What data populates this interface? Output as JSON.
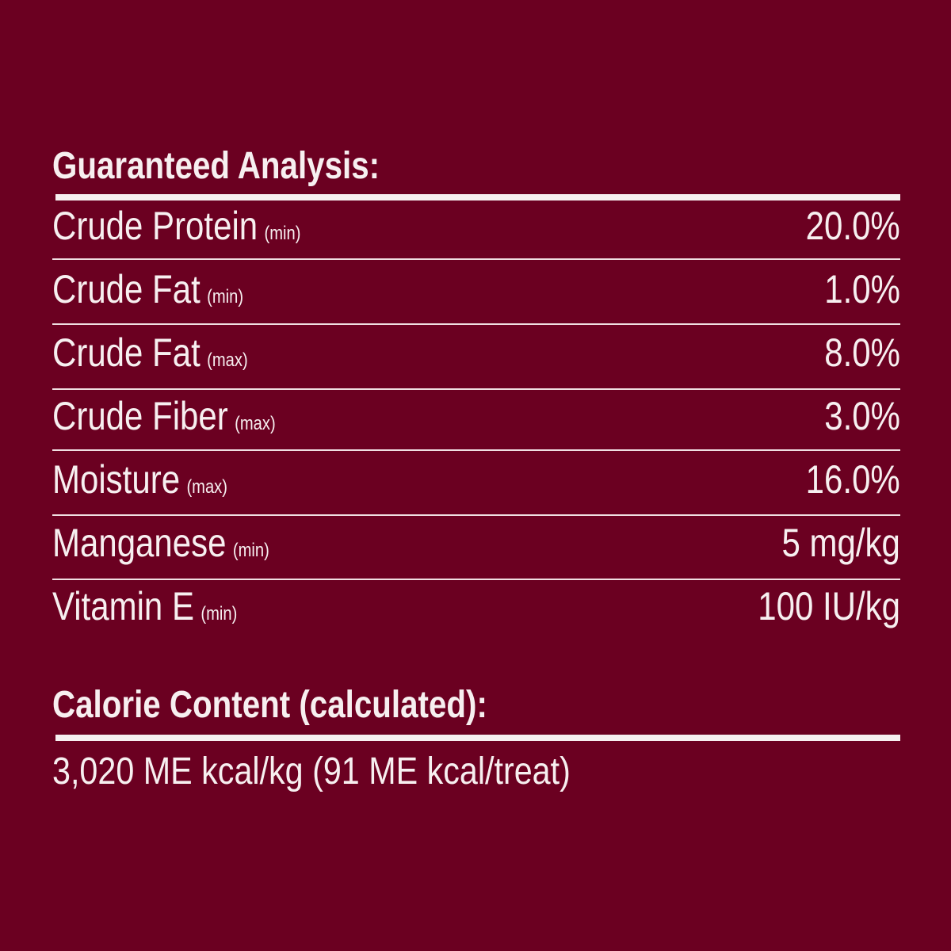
{
  "analysis": {
    "title": "Guaranteed Analysis:",
    "rows": [
      {
        "label": "Crude Protein",
        "qualifier": "(min)",
        "value": "20.0%"
      },
      {
        "label": "Crude Fat",
        "qualifier": "(min)",
        "value": "1.0%"
      },
      {
        "label": "Crude Fat",
        "qualifier": "(max)",
        "value": "8.0%"
      },
      {
        "label": "Crude Fiber",
        "qualifier": "(max)",
        "value": "3.0%"
      },
      {
        "label": "Moisture",
        "qualifier": "(max)",
        "value": "16.0%"
      },
      {
        "label": "Manganese",
        "qualifier": "(min)",
        "value": "5 mg/kg"
      },
      {
        "label": "Vitamin E",
        "qualifier": "(min)",
        "value": "100 IU/kg"
      }
    ]
  },
  "calorie": {
    "title": "Calorie Content (calculated):",
    "text": "3,020 ME kcal/kg (91 ME kcal/treat)"
  },
  "colors": {
    "background": "#6b0021",
    "text": "#f7eff0"
  }
}
